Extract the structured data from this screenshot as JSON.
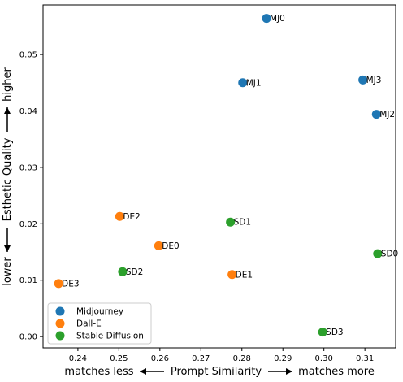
{
  "chart_data": {
    "type": "scatter",
    "title": "",
    "xlim": [
      0.2315,
      0.3175
    ],
    "ylim": [
      -0.002,
      0.0588
    ],
    "x_ticks": [
      0.24,
      0.25,
      0.26,
      0.27,
      0.28,
      0.29,
      0.3,
      0.31
    ],
    "x_tick_labels": [
      "0.24",
      "0.25",
      "0.26",
      "0.27",
      "0.28",
      "0.29",
      "0.30",
      "0.31"
    ],
    "y_ticks": [
      0.0,
      0.01,
      0.02,
      0.03,
      0.04,
      0.05
    ],
    "y_tick_labels": [
      "0.00",
      "0.01",
      "0.02",
      "0.03",
      "0.04",
      "0.05"
    ],
    "xlabel": {
      "left": "matches less",
      "center": "Prompt Similarity",
      "right": "matches more"
    },
    "ylabel": {
      "bottom": "lower",
      "center": "Esthetic Quality",
      "top": "higher"
    },
    "legend_position": "lower-left",
    "grid": false,
    "series": [
      {
        "name": "Midjourney",
        "color": "#1f77b4",
        "points": [
          {
            "label": "MJ0",
            "x": 0.286,
            "y": 0.0564
          },
          {
            "label": "MJ1",
            "x": 0.2802,
            "y": 0.045
          },
          {
            "label": "MJ3",
            "x": 0.3095,
            "y": 0.0455
          },
          {
            "label": "MJ2",
            "x": 0.3128,
            "y": 0.0394
          }
        ]
      },
      {
        "name": "Dall-E",
        "color": "#ff7f0e",
        "points": [
          {
            "label": "DE2",
            "x": 0.2502,
            "y": 0.0213
          },
          {
            "label": "DE0",
            "x": 0.2597,
            "y": 0.0161
          },
          {
            "label": "DE1",
            "x": 0.2776,
            "y": 0.011
          },
          {
            "label": "DE3",
            "x": 0.2353,
            "y": 0.0094
          }
        ]
      },
      {
        "name": "Stable Diffusion",
        "color": "#2ca02c",
        "points": [
          {
            "label": "SD1",
            "x": 0.2772,
            "y": 0.0203
          },
          {
            "label": "SD0",
            "x": 0.3131,
            "y": 0.0147
          },
          {
            "label": "SD2",
            "x": 0.2509,
            "y": 0.0115
          },
          {
            "label": "SD3",
            "x": 0.2997,
            "y": 0.0008
          }
        ]
      }
    ]
  }
}
